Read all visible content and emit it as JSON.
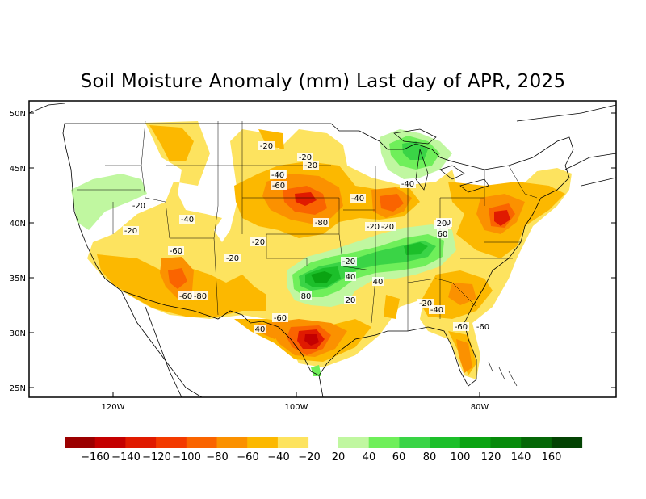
{
  "title": "Soil Moisture Anomaly (mm) Last day of APR, 2025",
  "lat_labels": [
    "50N",
    "45N",
    "40N",
    "35N",
    "30N",
    "25N"
  ],
  "lon_labels": [
    "120W",
    "100W",
    "80W"
  ],
  "contour_labels": [
    "-20",
    "-40",
    "-60",
    "-20",
    "-20",
    "-40",
    "-20",
    "-60",
    "-80",
    "-40",
    "-20",
    "-20",
    "-20",
    "-40",
    "-60",
    "-80",
    "-60",
    "-20",
    "-20",
    "-20",
    "-40",
    "-60",
    "40",
    "-20",
    "20",
    "60",
    "40",
    "40",
    "20",
    "80",
    "-20",
    "-40",
    "-60",
    "-40",
    "20"
  ],
  "colorbar": {
    "labels": [
      "−160",
      "−140",
      "−120",
      "−100",
      "−80",
      "−60",
      "−40",
      "−20",
      "20",
      "40",
      "60",
      "80",
      "100",
      "120",
      "140",
      "160"
    ],
    "dry_colors": [
      "#9b0000",
      "#c40000",
      "#e01a00",
      "#f33a00",
      "#fa6400",
      "#fb9100",
      "#fcb800",
      "#fde35f"
    ],
    "wet_colors": [
      "#c0f7a0",
      "#6fef5a",
      "#3ad446",
      "#1cbf2a",
      "#0aa312",
      "#078a0b",
      "#056707",
      "#034303"
    ]
  }
}
